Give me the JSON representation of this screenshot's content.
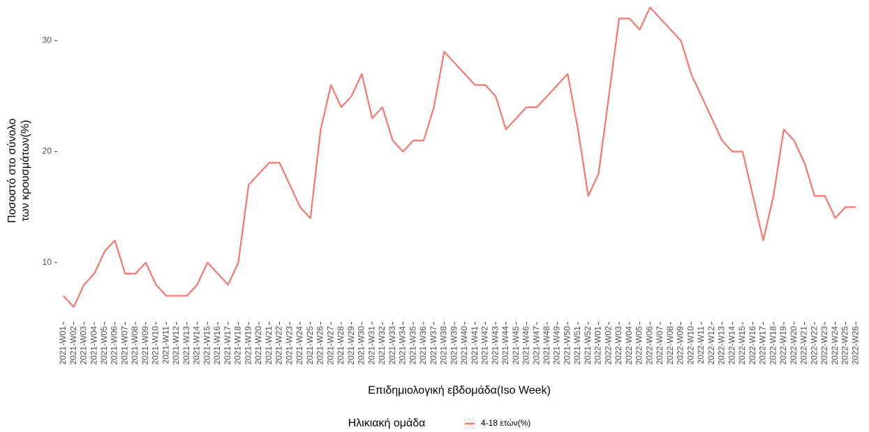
{
  "chart_data": {
    "type": "line",
    "x_label": "Επιδημιολογική εβδομάδα(Iso Week)",
    "y_label": [
      "Ποσοστό στο σύνολο",
      "των κρουσμάτων(%)"
    ],
    "legend_title": "Ηλικιακή ομάδα",
    "legend_position": "bottom",
    "grid": false,
    "categories": [
      "2021-W01",
      "2021-W02",
      "2021-W03",
      "2021-W04",
      "2021-W05",
      "2021-W06",
      "2021-W07",
      "2021-W08",
      "2021-W09",
      "2021-W10",
      "2021-W11",
      "2021-W12",
      "2021-W13",
      "2021-W14",
      "2021-W15",
      "2021-W16",
      "2021-W17",
      "2021-W18",
      "2021-W19",
      "2021-W20",
      "2021-W21",
      "2021-W22",
      "2021-W23",
      "2021-W24",
      "2021-W25",
      "2021-W26",
      "2021-W27",
      "2021-W28",
      "2021-W29",
      "2021-W30",
      "2021-W31",
      "2021-W32",
      "2021-W33",
      "2021-W34",
      "2021-W35",
      "2021-W36",
      "2021-W37",
      "2021-W38",
      "2021-W39",
      "2021-W40",
      "2021-W41",
      "2021-W42",
      "2021-W43",
      "2021-W44",
      "2021-W45",
      "2021-W46",
      "2021-W47",
      "2021-W48",
      "2021-W49",
      "2021-W50",
      "2021-W51",
      "2021-W52",
      "2022-W01",
      "2022-W02",
      "2022-W03",
      "2022-W04",
      "2022-W05",
      "2022-W06",
      "2022-W07",
      "2022-W08",
      "2022-W09",
      "2022-W10",
      "2022-W11",
      "2022-W12",
      "2022-W13",
      "2022-W14",
      "2022-W15",
      "2022-W16",
      "2022-W17",
      "2022-W18",
      "2022-W19",
      "2022-W20",
      "2022-W21",
      "2022-W22",
      "2022-W23",
      "2022-W24",
      "2022-W25",
      "2022-W26"
    ],
    "series": [
      {
        "name": "4-18 ετών(%)",
        "color": "#F8766D",
        "values": [
          7,
          6,
          8,
          9,
          11,
          12,
          9,
          9,
          10,
          8,
          7,
          7,
          7,
          8,
          10,
          9,
          8,
          10,
          17,
          18,
          19,
          19,
          17,
          15,
          14,
          22,
          26,
          24,
          25,
          27,
          23,
          24,
          21,
          20,
          21,
          21,
          24,
          29,
          28,
          27,
          26,
          26,
          25,
          22,
          23,
          24,
          24,
          25,
          26,
          27,
          22,
          16,
          18,
          25,
          32,
          32,
          31,
          33,
          32,
          31,
          30,
          27,
          25,
          23,
          21,
          20,
          20,
          16,
          12,
          16,
          22,
          21,
          19,
          16,
          16,
          14,
          15,
          15
        ]
      }
    ],
    "ylim": [
      4.65,
      33.35
    ],
    "yticks": [
      10,
      20,
      30
    ]
  }
}
